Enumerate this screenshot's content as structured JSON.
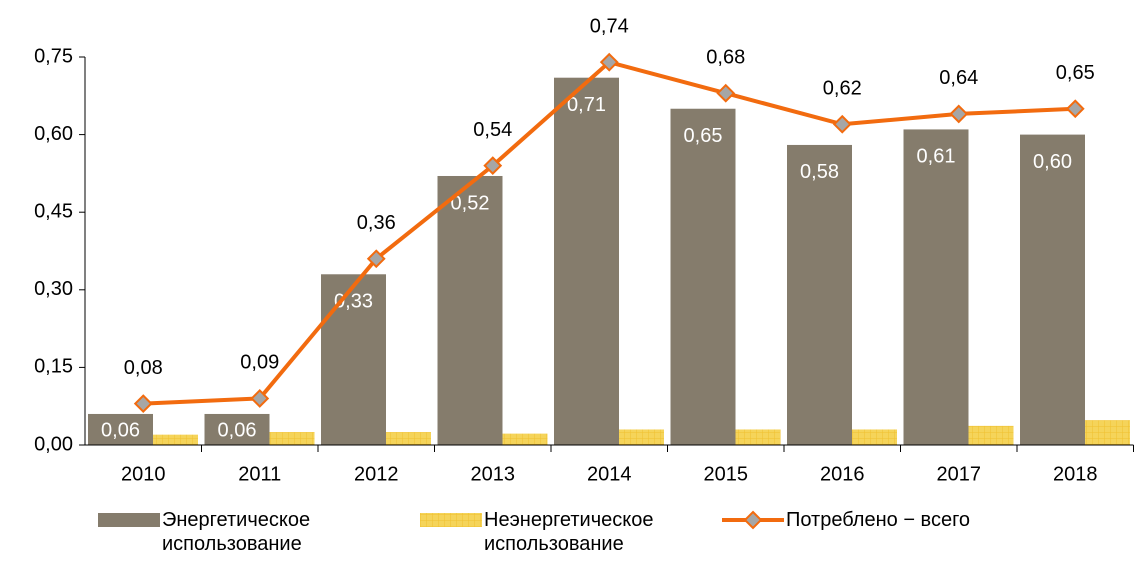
{
  "chart_data": {
    "type": "bar_line",
    "categories": [
      "2010",
      "2011",
      "2012",
      "2013",
      "2014",
      "2015",
      "2016",
      "2017",
      "2018"
    ],
    "series": [
      {
        "name": "Энергетическое использование",
        "type": "bar",
        "color": "#857c6c",
        "values": [
          0.06,
          0.06,
          0.33,
          0.52,
          0.71,
          0.65,
          0.58,
          0.61,
          0.6
        ],
        "value_labels": [
          "0,06",
          "0,06",
          "0,33",
          "0,52",
          "0,71",
          "0,65",
          "0,58",
          "0,61",
          "0,60"
        ]
      },
      {
        "name": "Неэнергетическое использование",
        "type": "bar",
        "color": "#f5d45a",
        "values": [
          0.02,
          0.025,
          0.025,
          0.022,
          0.03,
          0.03,
          0.03,
          0.037,
          0.048
        ]
      },
      {
        "name": "Потреблено − всего",
        "type": "line",
        "color": "#f26b0f",
        "values": [
          0.08,
          0.09,
          0.36,
          0.54,
          0.74,
          0.68,
          0.62,
          0.64,
          0.65
        ],
        "value_labels": [
          "0,08",
          "0,09",
          "0,36",
          "0,54",
          "0,74",
          "0,68",
          "0,62",
          "0,64",
          "0,65"
        ]
      }
    ],
    "ylim": [
      0,
      0.75
    ],
    "yticks": [
      {
        "value": 0,
        "label": "0,00"
      },
      {
        "value": 0.15,
        "label": "0,15"
      },
      {
        "value": 0.3,
        "label": "0,30"
      },
      {
        "value": 0.45,
        "label": "0,45"
      },
      {
        "value": 0.6,
        "label": "0,60"
      },
      {
        "value": 0.75,
        "label": "0,75"
      }
    ],
    "grid": false,
    "legend": "bottom"
  }
}
